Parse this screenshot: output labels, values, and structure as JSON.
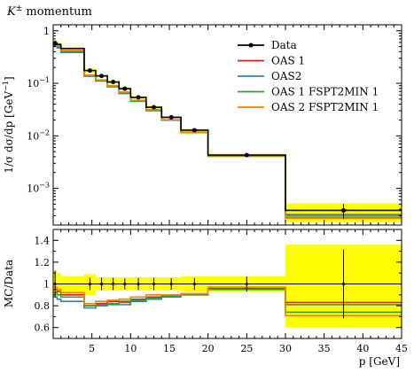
{
  "chart_data": {
    "type": "line",
    "title": "K^{±} momentum",
    "xlabel": "p [GeV]",
    "xlim": [
      0,
      45
    ],
    "x_ticks": [
      5,
      10,
      15,
      20,
      25,
      30,
      35,
      40,
      45
    ],
    "bins": [
      0,
      0.5,
      1,
      4,
      5.5,
      7,
      8.5,
      10,
      12,
      14,
      16.5,
      20,
      30,
      45
    ],
    "main": {
      "ylabel": "1/σ dσ/dp [GeV^{−1}]",
      "ylim": [
        0.0002,
        1.3
      ],
      "log": true,
      "y_ticks": [
        {
          "value": 0.001,
          "base": "10",
          "exp": "−3"
        },
        {
          "value": 0.01,
          "base": "10",
          "exp": "−2"
        },
        {
          "value": 0.1,
          "base": "10",
          "exp": "−1"
        },
        {
          "value": 1,
          "base": "1",
          "exp": ""
        }
      ],
      "data_points": [
        {
          "x": 0.25,
          "y": 0.58,
          "err": 0.07
        },
        {
          "x": 4.75,
          "y": 0.175,
          "err": 0.01
        },
        {
          "x": 6.25,
          "y": 0.138,
          "err": 0.008
        },
        {
          "x": 7.75,
          "y": 0.106,
          "err": 0.006
        },
        {
          "x": 9.25,
          "y": 0.079,
          "err": 0.004
        },
        {
          "x": 11.0,
          "y": 0.054,
          "err": 0.003
        },
        {
          "x": 13.0,
          "y": 0.035,
          "err": 0.002
        },
        {
          "x": 15.25,
          "y": 0.0225,
          "err": 0.0012
        },
        {
          "x": 18.25,
          "y": 0.0128,
          "err": 0.0007
        },
        {
          "x": 25.0,
          "y": 0.0043,
          "err": 0.0003
        },
        {
          "x": 37.5,
          "y": 0.00038,
          "err": 0.00012
        }
      ],
      "data_y": [
        0.58,
        0.55,
        0.46,
        0.175,
        0.138,
        0.106,
        0.079,
        0.054,
        0.035,
        0.0225,
        0.0128,
        0.0043,
        0.00038
      ],
      "data_line_y": [
        0.58,
        0.55,
        0.46,
        0.175,
        0.138,
        0.106,
        0.079,
        0.054,
        0.035,
        0.0225,
        0.0128,
        0.0043,
        0.00038
      ]
    },
    "ratio": {
      "ylabel": "MC/Data",
      "ylim": [
        0.5,
        1.5
      ],
      "y_ticks": [
        0.6,
        0.8,
        1.0,
        1.2,
        1.4
      ],
      "band_lo": [
        0.88,
        0.9,
        0.92,
        0.9,
        0.94,
        0.94,
        0.94,
        0.94,
        0.94,
        0.94,
        0.93,
        0.93,
        0.6
      ],
      "band_hi": [
        1.12,
        1.1,
        1.07,
        1.09,
        1.06,
        1.06,
        1.06,
        1.06,
        1.06,
        1.06,
        1.07,
        1.07,
        1.36
      ]
    },
    "series": [
      {
        "name": "Data",
        "color": "#000000",
        "ratio": [
          1,
          1,
          1,
          1,
          1,
          1,
          1,
          1,
          1,
          1,
          1,
          1,
          1
        ]
      },
      {
        "name": "OAS 1",
        "color": "#e41a1c",
        "ratio": [
          0.95,
          0.93,
          0.9,
          0.8,
          0.82,
          0.84,
          0.84,
          0.86,
          0.88,
          0.89,
          0.91,
          0.96,
          0.83
        ]
      },
      {
        "name": "OAS2",
        "color": "#377eb8",
        "ratio": [
          0.88,
          0.86,
          0.84,
          0.78,
          0.8,
          0.81,
          0.81,
          0.84,
          0.86,
          0.88,
          0.9,
          0.95,
          0.81
        ]
      },
      {
        "name": "OAS 1 FSPT2MIN 1",
        "color": "#33a02c",
        "ratio": [
          0.92,
          0.9,
          0.88,
          0.8,
          0.81,
          0.82,
          0.83,
          0.85,
          0.87,
          0.89,
          0.9,
          0.95,
          0.74
        ]
      },
      {
        "name": "OAS 2 FSPT2MIN 1",
        "color": "#ff7f00",
        "ratio": [
          0.97,
          0.95,
          0.92,
          0.82,
          0.84,
          0.85,
          0.86,
          0.88,
          0.9,
          0.9,
          0.91,
          0.97,
          0.71
        ]
      }
    ],
    "legend_position": "top-right",
    "band_color": "#ffff00"
  }
}
